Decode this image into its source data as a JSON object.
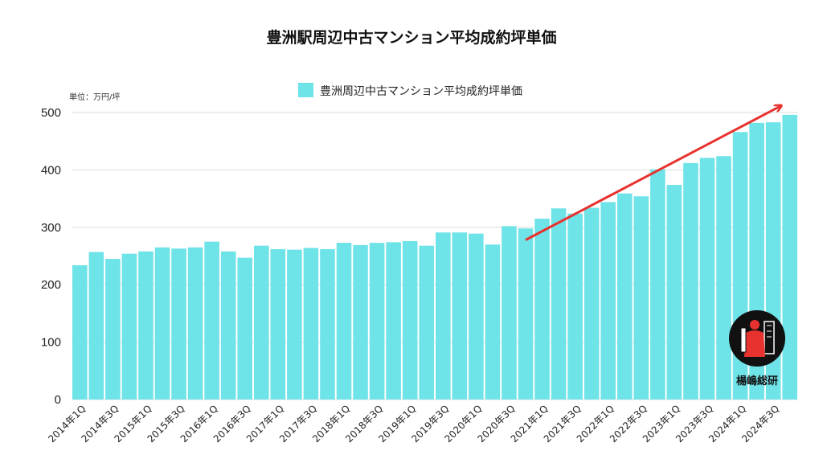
{
  "chart_data": {
    "type": "bar",
    "title": "豊洲駅周辺中古マンション平均成約坪単価",
    "unit_label": "単位：万円/坪",
    "legend": [
      {
        "name": "豊洲周辺中古マンション平均成約坪単価",
        "color": "#6ee3e8"
      }
    ],
    "legend_position": "top-center",
    "grid": true,
    "ylim": [
      0,
      500
    ],
    "yticks": [
      0,
      100,
      200,
      300,
      400,
      500
    ],
    "categories": [
      "2014年1Q",
      "2014年2Q",
      "2014年3Q",
      "2014年4Q",
      "2015年1Q",
      "2015年2Q",
      "2015年3Q",
      "2015年4Q",
      "2016年1Q",
      "2016年2Q",
      "2016年3Q",
      "2016年4Q",
      "2017年1Q",
      "2017年2Q",
      "2017年3Q",
      "2017年4Q",
      "2018年1Q",
      "2018年2Q",
      "2018年3Q",
      "2018年4Q",
      "2019年1Q",
      "2019年2Q",
      "2019年3Q",
      "2019年4Q",
      "2020年1Q",
      "2020年2Q",
      "2020年3Q",
      "2020年4Q",
      "2021年1Q",
      "2021年2Q",
      "2021年3Q",
      "2021年4Q",
      "2022年1Q",
      "2022年2Q",
      "2022年3Q",
      "2022年4Q",
      "2023年1Q",
      "2023年2Q",
      "2023年3Q",
      "2023年4Q",
      "2024年1Q",
      "2024年2Q",
      "2024年3Q",
      "2024年4Q"
    ],
    "xtick_labels_shown": [
      "2014年1Q",
      "2014年3Q",
      "2015年1Q",
      "2015年3Q",
      "2016年1Q",
      "2016年3Q",
      "2017年1Q",
      "2017年3Q",
      "2018年1Q",
      "2018年3Q",
      "2019年1Q",
      "2019年3Q",
      "2020年1Q",
      "2020年3Q",
      "2021年1Q",
      "2021年3Q",
      "2022年1Q",
      "2022年3Q",
      "2023年1Q",
      "2023年3Q",
      "2024年1Q",
      "2024年3Q"
    ],
    "series": [
      {
        "name": "豊洲周辺中古マンション平均成約坪単価",
        "color": "#6ee3e8",
        "values": [
          234,
          257,
          245,
          254,
          258,
          265,
          263,
          265,
          275,
          258,
          247,
          268,
          262,
          261,
          264,
          262,
          273,
          269,
          273,
          274,
          276,
          268,
          291,
          291,
          289,
          270,
          302,
          298,
          315,
          333,
          324,
          334,
          344,
          359,
          354,
          401,
          374,
          412,
          421,
          424,
          466,
          482,
          483,
          496
        ]
      }
    ],
    "trend_arrow": {
      "color": "#e8322f",
      "from": {
        "category": "2020年4Q",
        "value": 278
      },
      "to": {
        "category": "2024年4Q",
        "value": 511
      }
    }
  },
  "logo": {
    "text": "楊嶋総研",
    "icon": "person-with-building-icon"
  }
}
